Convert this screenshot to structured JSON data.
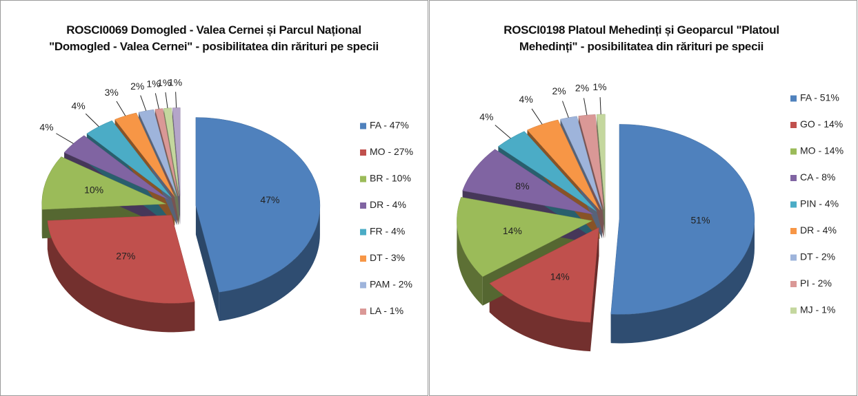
{
  "chart_data": [
    {
      "type": "pie",
      "title": "ROSCI0069 Domogled - Valea Cernei și Parcul Național \"Domogled - Valea Cernei\" - posibilitatea din rărituri pe specii",
      "categories": [
        "FA - 47%",
        "MO - 27%",
        "BR - 10%",
        "DR - 4%",
        "FR - 4%",
        "DT - 3%",
        "PAM - 2%",
        "LA - 1%",
        null,
        null
      ],
      "values": [
        47,
        27,
        10,
        4,
        4,
        3,
        2,
        1,
        1,
        1
      ],
      "value_labels": [
        "47%",
        "27%",
        "10%",
        "4%",
        "4%",
        "3%",
        "2%",
        "1%",
        "1%",
        "1%"
      ],
      "colors": [
        "#4F81BD",
        "#C0504D",
        "#9BBB59",
        "#8064A2",
        "#4BACC6",
        "#F79646",
        "#9EB4DB",
        "#DA9896",
        "#C4D79E",
        "#B4A5C9"
      ]
    },
    {
      "type": "pie",
      "title": "ROSCI0198 Platoul Mehedinți și Geoparcul \"Platoul Mehedinți\" - posibilitatea din rărituri pe specii",
      "categories": [
        "FA - 51%",
        "GO - 14%",
        "MO - 14%",
        "CA  - 8%",
        "PIN - 4%",
        "DR - 4%",
        "DT - 2%",
        "PI - 2%",
        "MJ - 1%"
      ],
      "values": [
        51,
        14,
        14,
        8,
        4,
        4,
        2,
        2,
        1
      ],
      "value_labels": [
        "51%",
        "14%",
        "14%",
        "8%",
        "4%",
        "4%",
        "2%",
        "2%",
        "1%"
      ],
      "colors": [
        "#4F81BD",
        "#C0504D",
        "#9BBB59",
        "#8064A2",
        "#4BACC6",
        "#F79646",
        "#9EB4DB",
        "#DA9896",
        "#C4D79E"
      ]
    }
  ]
}
